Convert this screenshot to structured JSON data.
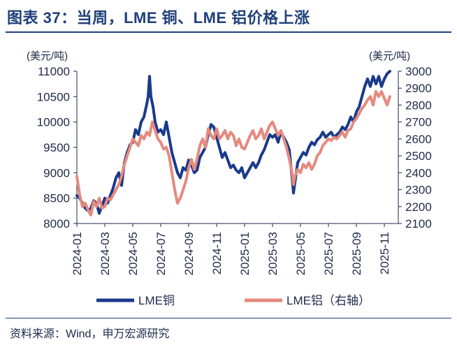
{
  "title": "图表 37：当周，LME 铜、LME 铝价格上涨",
  "source": "资料来源：Wind，申万宏源研究",
  "chart_data": {
    "type": "line",
    "left_unit": "(美元/吨)",
    "right_unit": "(美元/吨)",
    "yleft": {
      "min": 8000,
      "max": 11000,
      "ticks": [
        8000,
        8500,
        9000,
        9500,
        10000,
        10500,
        11000
      ]
    },
    "yright": {
      "min": 2100,
      "max": 3000,
      "ticks": [
        2100,
        2200,
        2300,
        2400,
        2500,
        2600,
        2700,
        2800,
        2900,
        3000
      ]
    },
    "x_ticks": [
      "2024-01",
      "2024-03",
      "2024-05",
      "2024-07",
      "2024-09",
      "2024-11",
      "2025-01",
      "2025-03",
      "2025-05",
      "2025-07",
      "2025-09",
      "2025-11"
    ],
    "x_range_months": [
      0,
      23
    ],
    "series": [
      {
        "name": "LME铜",
        "axis": "left",
        "color": "#1a3a8c",
        "points": [
          [
            0.0,
            8550
          ],
          [
            0.2,
            8500
          ],
          [
            0.4,
            8400
          ],
          [
            0.6,
            8300
          ],
          [
            0.8,
            8250
          ],
          [
            1.0,
            8300
          ],
          [
            1.2,
            8450
          ],
          [
            1.4,
            8400
          ],
          [
            1.6,
            8200
          ],
          [
            1.8,
            8350
          ],
          [
            2.0,
            8500
          ],
          [
            2.2,
            8400
          ],
          [
            2.4,
            8550
          ],
          [
            2.6,
            8700
          ],
          [
            2.8,
            8900
          ],
          [
            3.0,
            9000
          ],
          [
            3.2,
            8750
          ],
          [
            3.4,
            9200
          ],
          [
            3.6,
            9400
          ],
          [
            3.8,
            9550
          ],
          [
            4.0,
            9600
          ],
          [
            4.2,
            9850
          ],
          [
            4.4,
            9750
          ],
          [
            4.6,
            10000
          ],
          [
            4.8,
            10100
          ],
          [
            5.0,
            10350
          ],
          [
            5.1,
            10500
          ],
          [
            5.2,
            10900
          ],
          [
            5.3,
            10500
          ],
          [
            5.45,
            10300
          ],
          [
            5.6,
            10000
          ],
          [
            5.8,
            9800
          ],
          [
            6.0,
            9850
          ],
          [
            6.2,
            9750
          ],
          [
            6.4,
            10000
          ],
          [
            6.6,
            9700
          ],
          [
            6.8,
            9400
          ],
          [
            7.0,
            9200
          ],
          [
            7.2,
            9000
          ],
          [
            7.4,
            8900
          ],
          [
            7.6,
            9100
          ],
          [
            7.8,
            9050
          ],
          [
            8.0,
            9250
          ],
          [
            8.2,
            9150
          ],
          [
            8.4,
            9000
          ],
          [
            8.6,
            9050
          ],
          [
            8.8,
            9300
          ],
          [
            9.0,
            9400
          ],
          [
            9.2,
            9500
          ],
          [
            9.4,
            9750
          ],
          [
            9.6,
            9950
          ],
          [
            9.8,
            9900
          ],
          [
            10.0,
            9700
          ],
          [
            10.2,
            9500
          ],
          [
            10.4,
            9300
          ],
          [
            10.6,
            9400
          ],
          [
            10.8,
            9250
          ],
          [
            11.0,
            9100
          ],
          [
            11.2,
            9150
          ],
          [
            11.4,
            9050
          ],
          [
            11.6,
            9000
          ],
          [
            11.8,
            9100
          ],
          [
            12.0,
            8900
          ],
          [
            12.2,
            9000
          ],
          [
            12.4,
            9100
          ],
          [
            12.6,
            9200
          ],
          [
            12.8,
            9100
          ],
          [
            13.0,
            9200
          ],
          [
            13.2,
            9350
          ],
          [
            13.4,
            9450
          ],
          [
            13.6,
            9600
          ],
          [
            13.8,
            9750
          ],
          [
            14.0,
            9700
          ],
          [
            14.2,
            9750
          ],
          [
            14.4,
            9600
          ],
          [
            14.6,
            9800
          ],
          [
            14.8,
            9700
          ],
          [
            15.0,
            9600
          ],
          [
            15.2,
            9450
          ],
          [
            15.4,
            8900
          ],
          [
            15.5,
            8600
          ],
          [
            15.6,
            8800
          ],
          [
            15.8,
            9200
          ],
          [
            16.0,
            9300
          ],
          [
            16.2,
            9400
          ],
          [
            16.4,
            9350
          ],
          [
            16.6,
            9500
          ],
          [
            16.8,
            9600
          ],
          [
            17.0,
            9550
          ],
          [
            17.2,
            9650
          ],
          [
            17.4,
            9700
          ],
          [
            17.6,
            9800
          ],
          [
            17.8,
            9700
          ],
          [
            18.0,
            9750
          ],
          [
            18.2,
            9800
          ],
          [
            18.4,
            9700
          ],
          [
            18.6,
            9750
          ],
          [
            18.8,
            9800
          ],
          [
            19.0,
            9900
          ],
          [
            19.2,
            9850
          ],
          [
            19.4,
            9950
          ],
          [
            19.6,
            10100
          ],
          [
            19.8,
            10000
          ],
          [
            20.0,
            10200
          ],
          [
            20.2,
            10300
          ],
          [
            20.4,
            10500
          ],
          [
            20.6,
            10700
          ],
          [
            20.8,
            10850
          ],
          [
            21.0,
            10700
          ],
          [
            21.2,
            10900
          ],
          [
            21.4,
            10750
          ],
          [
            21.6,
            10900
          ],
          [
            21.8,
            10700
          ],
          [
            22.0,
            10850
          ],
          [
            22.2,
            10950
          ],
          [
            22.4,
            11000
          ]
        ]
      },
      {
        "name": "LME铝（右轴）",
        "axis": "right",
        "color": "#e58a7e",
        "points": [
          [
            0.0,
            2380
          ],
          [
            0.2,
            2270
          ],
          [
            0.4,
            2200
          ],
          [
            0.6,
            2220
          ],
          [
            0.8,
            2180
          ],
          [
            1.0,
            2150
          ],
          [
            1.2,
            2230
          ],
          [
            1.4,
            2200
          ],
          [
            1.6,
            2250
          ],
          [
            1.8,
            2190
          ],
          [
            2.0,
            2200
          ],
          [
            2.2,
            2250
          ],
          [
            2.4,
            2240
          ],
          [
            2.6,
            2270
          ],
          [
            2.8,
            2300
          ],
          [
            3.0,
            2330
          ],
          [
            3.2,
            2380
          ],
          [
            3.4,
            2450
          ],
          [
            3.6,
            2500
          ],
          [
            3.8,
            2550
          ],
          [
            4.0,
            2600
          ],
          [
            4.2,
            2580
          ],
          [
            4.4,
            2560
          ],
          [
            4.6,
            2620
          ],
          [
            4.8,
            2600
          ],
          [
            5.0,
            2640
          ],
          [
            5.2,
            2620
          ],
          [
            5.4,
            2700
          ],
          [
            5.6,
            2650
          ],
          [
            5.8,
            2600
          ],
          [
            6.0,
            2580
          ],
          [
            6.2,
            2540
          ],
          [
            6.4,
            2550
          ],
          [
            6.6,
            2500
          ],
          [
            6.8,
            2400
          ],
          [
            7.0,
            2300
          ],
          [
            7.2,
            2220
          ],
          [
            7.4,
            2250
          ],
          [
            7.6,
            2300
          ],
          [
            7.8,
            2350
          ],
          [
            8.0,
            2430
          ],
          [
            8.2,
            2480
          ],
          [
            8.4,
            2420
          ],
          [
            8.6,
            2480
          ],
          [
            8.8,
            2560
          ],
          [
            9.0,
            2600
          ],
          [
            9.2,
            2550
          ],
          [
            9.4,
            2660
          ],
          [
            9.6,
            2620
          ],
          [
            9.8,
            2600
          ],
          [
            10.0,
            2660
          ],
          [
            10.2,
            2600
          ],
          [
            10.4,
            2620
          ],
          [
            10.6,
            2650
          ],
          [
            10.8,
            2600
          ],
          [
            11.0,
            2640
          ],
          [
            11.2,
            2620
          ],
          [
            11.4,
            2560
          ],
          [
            11.6,
            2600
          ],
          [
            11.8,
            2550
          ],
          [
            12.0,
            2540
          ],
          [
            12.2,
            2580
          ],
          [
            12.4,
            2620
          ],
          [
            12.6,
            2650
          ],
          [
            12.8,
            2600
          ],
          [
            13.0,
            2620
          ],
          [
            13.2,
            2660
          ],
          [
            13.4,
            2600
          ],
          [
            13.6,
            2640
          ],
          [
            13.8,
            2680
          ],
          [
            14.0,
            2700
          ],
          [
            14.2,
            2660
          ],
          [
            14.4,
            2620
          ],
          [
            14.6,
            2650
          ],
          [
            14.8,
            2600
          ],
          [
            15.0,
            2550
          ],
          [
            15.2,
            2480
          ],
          [
            15.4,
            2400
          ],
          [
            15.5,
            2330
          ],
          [
            15.6,
            2380
          ],
          [
            15.8,
            2420
          ],
          [
            16.0,
            2400
          ],
          [
            16.2,
            2450
          ],
          [
            16.4,
            2430
          ],
          [
            16.6,
            2460
          ],
          [
            16.8,
            2420
          ],
          [
            17.0,
            2450
          ],
          [
            17.2,
            2500
          ],
          [
            17.4,
            2520
          ],
          [
            17.6,
            2560
          ],
          [
            17.8,
            2580
          ],
          [
            18.0,
            2600
          ],
          [
            18.2,
            2590
          ],
          [
            18.4,
            2610
          ],
          [
            18.6,
            2600
          ],
          [
            18.8,
            2620
          ],
          [
            19.0,
            2640
          ],
          [
            19.2,
            2610
          ],
          [
            19.4,
            2650
          ],
          [
            19.6,
            2660
          ],
          [
            19.8,
            2700
          ],
          [
            20.0,
            2720
          ],
          [
            20.2,
            2750
          ],
          [
            20.4,
            2780
          ],
          [
            20.6,
            2800
          ],
          [
            20.8,
            2830
          ],
          [
            21.0,
            2850
          ],
          [
            21.2,
            2800
          ],
          [
            21.4,
            2880
          ],
          [
            21.6,
            2850
          ],
          [
            21.8,
            2880
          ],
          [
            22.0,
            2840
          ],
          [
            22.2,
            2800
          ],
          [
            22.4,
            2850
          ]
        ]
      }
    ]
  }
}
